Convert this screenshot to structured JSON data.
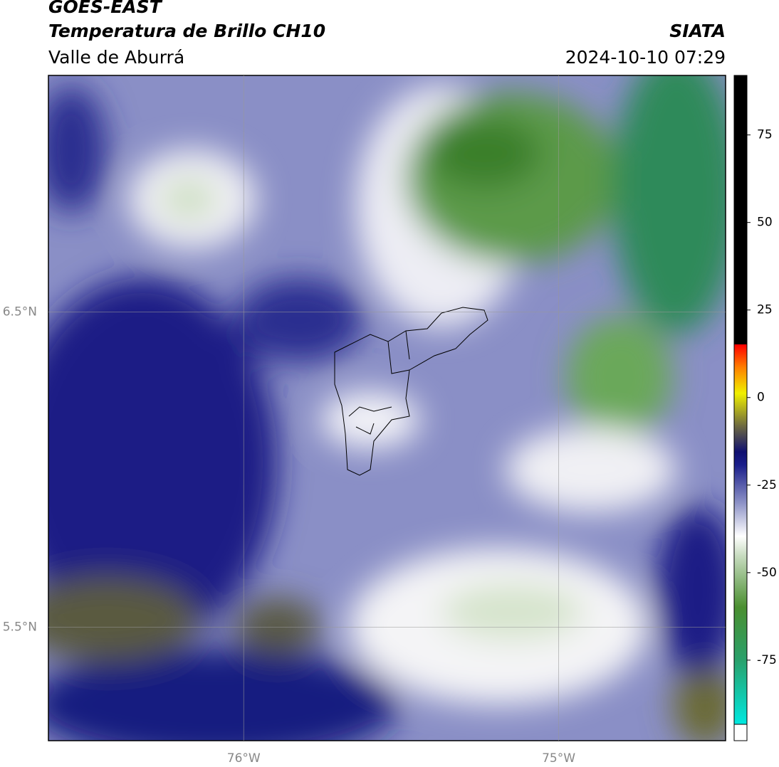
{
  "header": {
    "title": "GOES-EAST",
    "subtitle": "Temperatura de Brillo CH10",
    "region": "Valle de Aburrá",
    "source": "SIATA",
    "timestamp": "2024-10-10 07:29"
  },
  "map": {
    "xlim": [
      -76.62,
      -74.47
    ],
    "ylim": [
      5.14,
      7.25
    ],
    "xticks": [
      {
        "value": -76,
        "label": "76°W"
      },
      {
        "value": -75,
        "label": "75°W"
      }
    ],
    "yticks": [
      {
        "value": 6.5,
        "label": "6.5°N"
      },
      {
        "value": 5.5,
        "label": "5.5°N"
      }
    ],
    "grid": true
  },
  "colorbar": {
    "lim": [
      -98,
      92
    ],
    "ticks": [
      75,
      50,
      25,
      0,
      -25,
      -50,
      -75
    ]
  }
}
